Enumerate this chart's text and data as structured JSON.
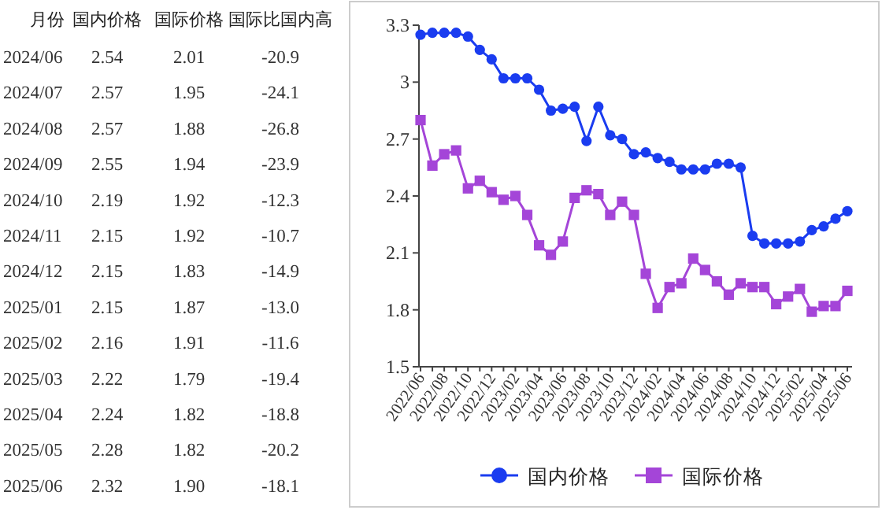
{
  "chart_data": [
    {
      "type": "other",
      "xlabel": "月份",
      "categories": [
        "2024/06",
        "2024/07",
        "2024/08",
        "2024/09",
        "2024/10",
        "2024/11",
        "2024/12",
        "2025/01",
        "2025/02",
        "2025/03",
        "2025/04",
        "2025/05",
        "2025/06"
      ],
      "series": [
        {
          "name": "国内价格",
          "values": [
            2.54,
            2.57,
            2.57,
            2.55,
            2.19,
            2.15,
            2.15,
            2.15,
            2.16,
            2.22,
            2.24,
            2.28,
            2.32
          ],
          "value_labels": [
            "2.54",
            "2.57",
            "2.57",
            "2.55",
            "2.19",
            "2.15",
            "2.15",
            "2.15",
            "2.16",
            "2.22",
            "2.24",
            "2.28",
            "2.32"
          ]
        },
        {
          "name": "国际价格",
          "values": [
            2.01,
            1.95,
            1.88,
            1.94,
            1.92,
            1.92,
            1.83,
            1.87,
            1.91,
            1.79,
            1.82,
            1.82,
            1.9
          ],
          "value_labels": [
            "2.01",
            "1.95",
            "1.88",
            "1.94",
            "1.92",
            "1.92",
            "1.83",
            "1.87",
            "1.91",
            "1.79",
            "1.82",
            "1.82",
            "1.90"
          ]
        },
        {
          "name": "国际比国内高",
          "values": [
            -20.9,
            -24.1,
            -26.8,
            -23.9,
            -12.3,
            -10.7,
            -14.9,
            -13.0,
            -11.6,
            -19.4,
            -18.8,
            -20.2,
            -18.1
          ],
          "value_labels": [
            "-20.9",
            "-24.1",
            "-26.8",
            "-23.9",
            "-12.3",
            "-10.7",
            "-14.9",
            "-13.0",
            "-11.6",
            "-19.4",
            "-18.8",
            "-20.2",
            "-18.1"
          ]
        }
      ]
    },
    {
      "type": "line",
      "categories": [
        "2022/06",
        null,
        "2022/08",
        null,
        "2022/10",
        null,
        "2022/12",
        null,
        "2023/02",
        null,
        "2023/04",
        null,
        "2023/06",
        null,
        "2023/08",
        null,
        "2023/10",
        null,
        "2023/12",
        null,
        "2024/02",
        null,
        "2024/04",
        null,
        "2024/06",
        null,
        "2024/08",
        null,
        "2024/10",
        null,
        "2024/12",
        null,
        "2025/02",
        null,
        "2025/04",
        null,
        "2025/06"
      ],
      "ylim": [
        1.5,
        3.3
      ],
      "yticks": [
        1.5,
        1.8,
        2.1,
        2.4,
        2.7,
        3,
        3.3
      ],
      "legend": "bottom",
      "series": [
        {
          "name": "国内价格",
          "color": "#1a3cf0",
          "marker": "circle",
          "values": [
            3.25,
            3.26,
            3.26,
            3.26,
            3.24,
            3.17,
            3.12,
            3.02,
            3.02,
            3.02,
            2.96,
            2.85,
            2.86,
            2.87,
            2.69,
            2.87,
            2.72,
            2.7,
            2.62,
            2.63,
            2.6,
            2.58,
            2.54,
            2.54,
            2.54,
            2.57,
            2.57,
            2.55,
            2.19,
            2.15,
            2.15,
            2.15,
            2.16,
            2.22,
            2.24,
            2.28,
            2.32
          ]
        },
        {
          "name": "国际价格",
          "color": "#a445d8",
          "marker": "square",
          "values": [
            2.8,
            2.56,
            2.62,
            2.64,
            2.44,
            2.48,
            2.42,
            2.38,
            2.4,
            2.3,
            2.14,
            2.09,
            2.16,
            2.39,
            2.43,
            2.41,
            2.3,
            2.37,
            2.3,
            1.99,
            1.81,
            1.92,
            1.94,
            2.07,
            2.01,
            1.95,
            1.88,
            1.94,
            1.92,
            1.92,
            1.83,
            1.87,
            1.91,
            1.79,
            1.82,
            1.82,
            1.9
          ]
        }
      ]
    }
  ]
}
